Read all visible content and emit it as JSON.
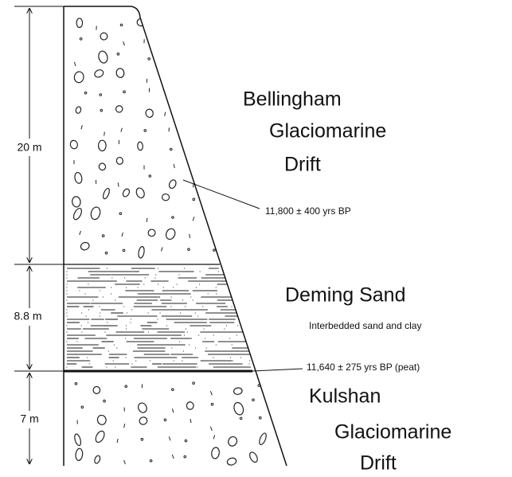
{
  "units": [
    {
      "name_lines": [
        "Bellingham",
        "Glaciomarine",
        "Drift"
      ],
      "thickness": "20 m"
    },
    {
      "name_lines": [
        "Deming Sand"
      ],
      "thickness": "8.8 m",
      "description": "Interbedded sand and clay"
    },
    {
      "name_lines": [
        "Kulshan",
        "Glaciomarine",
        "Drift"
      ],
      "thickness": "7 m"
    }
  ],
  "dates": [
    "11,800 ± 400 yrs BP",
    "11,640 ± 275 yrs BP (peat)"
  ]
}
